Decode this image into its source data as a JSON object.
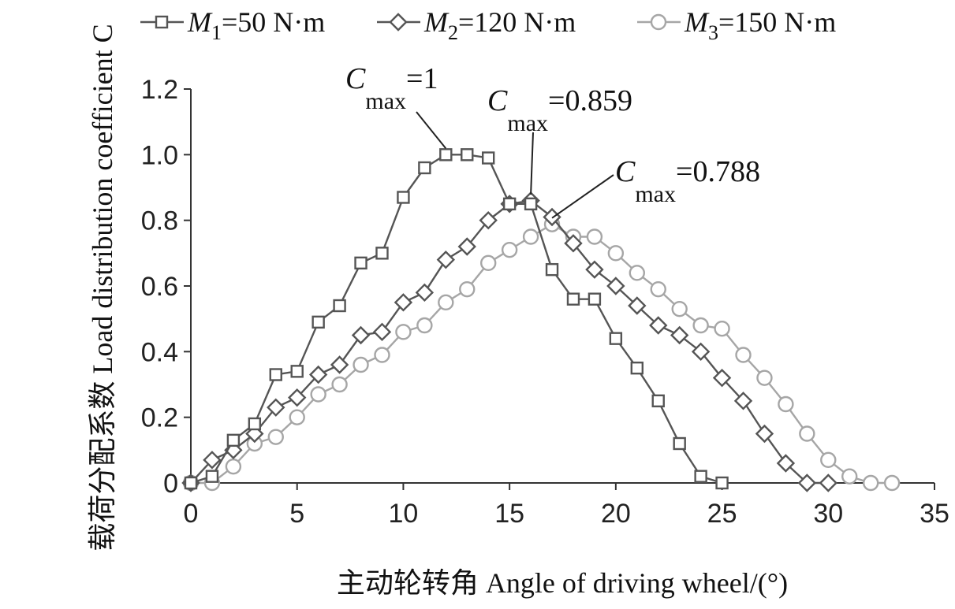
{
  "chart_data": {
    "type": "line",
    "xlabel": "主动轮转角 Angle of driving wheel/(°)",
    "ylabel": "载荷分配系数 Load distribution coefficient C",
    "xlim": [
      0,
      35
    ],
    "ylim": [
      0,
      1.2
    ],
    "xticks": [
      0,
      5,
      10,
      15,
      20,
      25,
      30,
      35
    ],
    "yticks": [
      0,
      0.2,
      0.4,
      0.6,
      0.8,
      1.0,
      1.2
    ],
    "ytick_labels": [
      "0",
      "0.2",
      "0.4",
      "0.6",
      "0.8",
      "1.0",
      "1.2"
    ],
    "grid": false,
    "legend_position": "top",
    "series": [
      {
        "legend": {
          "sym": "M",
          "sub": "1",
          "rest": "=50 N·m"
        },
        "marker": "square",
        "color": "#555555",
        "x": [
          0,
          1,
          2,
          3,
          4,
          5,
          6,
          7,
          8,
          9,
          10,
          11,
          12,
          13,
          14,
          15,
          16,
          17,
          18,
          19,
          20,
          21,
          22,
          23,
          24,
          25
        ],
        "y": [
          0,
          0.02,
          0.13,
          0.18,
          0.33,
          0.34,
          0.49,
          0.54,
          0.67,
          0.7,
          0.87,
          0.96,
          1.0,
          1.0,
          0.99,
          0.85,
          0.85,
          0.65,
          0.56,
          0.56,
          0.44,
          0.35,
          0.25,
          0.12,
          0.02,
          0
        ]
      },
      {
        "legend": {
          "sym": "M",
          "sub": "2",
          "rest": "=120 N·m"
        },
        "marker": "diamond",
        "color": "#555555",
        "x": [
          0,
          1,
          2,
          3,
          4,
          5,
          6,
          7,
          8,
          9,
          10,
          11,
          12,
          13,
          14,
          15,
          16,
          17,
          18,
          19,
          20,
          21,
          22,
          23,
          24,
          25,
          26,
          27,
          28,
          29,
          30
        ],
        "y": [
          0,
          0.07,
          0.1,
          0.15,
          0.23,
          0.26,
          0.33,
          0.36,
          0.45,
          0.46,
          0.55,
          0.58,
          0.68,
          0.72,
          0.8,
          0.85,
          0.86,
          0.81,
          0.73,
          0.65,
          0.6,
          0.54,
          0.48,
          0.45,
          0.4,
          0.32,
          0.25,
          0.15,
          0.06,
          0,
          0
        ]
      },
      {
        "legend": {
          "sym": "M",
          "sub": "3",
          "rest": "=150 N·m"
        },
        "marker": "circle",
        "color": "#a6a6a6",
        "x": [
          0,
          1,
          2,
          3,
          4,
          5,
          6,
          7,
          8,
          9,
          10,
          11,
          12,
          13,
          14,
          15,
          16,
          17,
          18,
          19,
          20,
          21,
          22,
          23,
          24,
          25,
          26,
          27,
          28,
          29,
          30,
          31,
          32,
          33
        ],
        "y": [
          0,
          0,
          0.05,
          0.12,
          0.14,
          0.2,
          0.27,
          0.3,
          0.36,
          0.39,
          0.46,
          0.48,
          0.55,
          0.59,
          0.67,
          0.71,
          0.75,
          0.788,
          0.75,
          0.75,
          0.7,
          0.64,
          0.59,
          0.53,
          0.48,
          0.47,
          0.39,
          0.32,
          0.24,
          0.15,
          0.07,
          0.02,
          0,
          0
        ]
      }
    ],
    "annotations": [
      {
        "sym": "C",
        "sub": "max",
        "rest": "=1",
        "x": 12,
        "y": 1.0
      },
      {
        "sym": "C",
        "sub": "max",
        "rest": "=0.859",
        "x": 16,
        "y": 0.859
      },
      {
        "sym": "C",
        "sub": "max",
        "rest": "=0.788",
        "x": 17,
        "y": 0.788
      }
    ]
  }
}
